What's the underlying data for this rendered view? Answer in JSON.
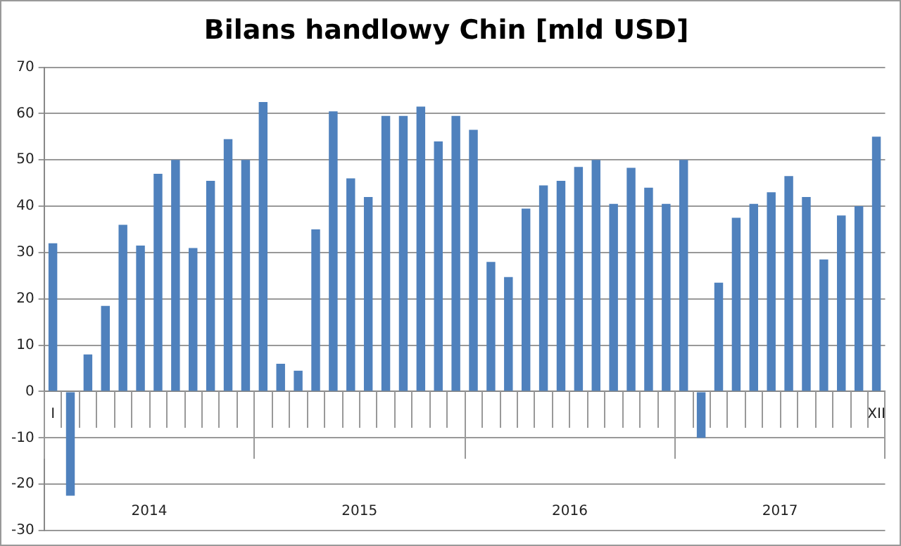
{
  "chart_data": {
    "type": "bar",
    "title": "Bilans handlowy Chin [mld USD]",
    "categories": [
      "I",
      null,
      null,
      null,
      null,
      null,
      null,
      null,
      null,
      null,
      null,
      null,
      null,
      null,
      null,
      null,
      null,
      null,
      null,
      null,
      null,
      null,
      null,
      null,
      null,
      null,
      null,
      null,
      null,
      null,
      null,
      null,
      null,
      null,
      null,
      null,
      null,
      null,
      null,
      null,
      null,
      null,
      null,
      null,
      null,
      null,
      null,
      "XII"
    ],
    "values": [
      32,
      -22.5,
      8,
      18.5,
      36,
      31.5,
      47,
      50,
      31,
      45.5,
      54.5,
      50,
      62.5,
      6,
      4.5,
      35,
      60.5,
      46,
      42,
      59.5,
      59.5,
      61.5,
      54,
      59.5,
      56.5,
      28,
      24.7,
      39.5,
      44.5,
      45.5,
      48.5,
      50,
      40.5,
      48.3,
      44,
      40.5,
      50,
      -10,
      23.5,
      37.5,
      40.5,
      43,
      46.5,
      42,
      28.5,
      38,
      40,
      55
    ],
    "color": "#4f81bd",
    "ylim": [
      -30,
      70
    ],
    "yticks": [
      -30,
      -20,
      -10,
      0,
      10,
      20,
      30,
      40,
      50,
      60,
      70
    ],
    "grid": "y",
    "annotations": [
      "2014",
      "2015",
      "2016",
      "2017"
    ]
  }
}
